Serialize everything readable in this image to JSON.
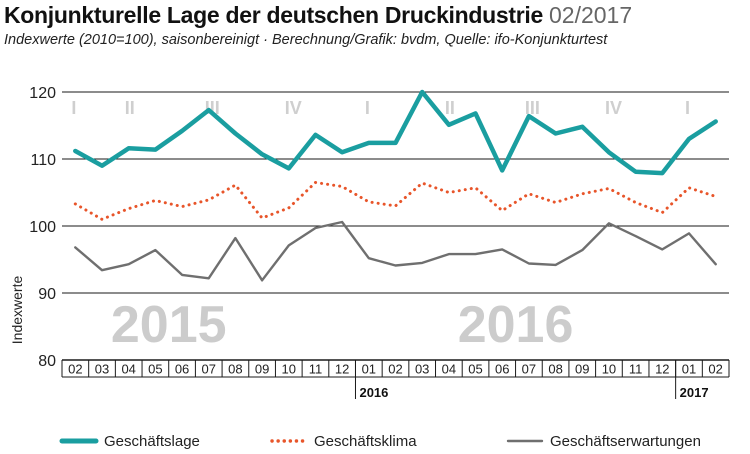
{
  "header": {
    "title": "Konjunkturelle Lage der deutschen Druckindustrie",
    "date": "02/2017",
    "subtitle": "Indexwerte (2010=100), saisonbereinigt · Berechnung/Grafik: bvdm, Quelle: ifo-Konjunkturtest"
  },
  "chart_data": {
    "type": "line",
    "title": "Konjunkturelle Lage der deutschen Druckindustrie",
    "ylabel": "Indexwerte",
    "xlabel": "",
    "ylim": [
      80,
      120
    ],
    "yticks": [
      80,
      90,
      100,
      110,
      120
    ],
    "grid": true,
    "legend_position": "bottom",
    "categories": [
      "02",
      "03",
      "04",
      "05",
      "06",
      "07",
      "08",
      "09",
      "10",
      "11",
      "12",
      "01",
      "02",
      "03",
      "04",
      "05",
      "06",
      "07",
      "08",
      "09",
      "10",
      "11",
      "12",
      "01",
      "02"
    ],
    "year_markers": [
      {
        "label": "2016",
        "index": 11
      },
      {
        "label": "2017",
        "index": 23
      }
    ],
    "quarters": [
      {
        "label": "I",
        "index": 0
      },
      {
        "label": "II",
        "index": 2
      },
      {
        "label": "III",
        "index": 5
      },
      {
        "label": "IV",
        "index": 8
      },
      {
        "label": "I",
        "index": 11
      },
      {
        "label": "II",
        "index": 14
      },
      {
        "label": "III",
        "index": 17
      },
      {
        "label": "IV",
        "index": 20
      },
      {
        "label": "I",
        "index": 23
      }
    ],
    "watermarks": [
      {
        "label": "2015",
        "index": 3.5
      },
      {
        "label": "2016",
        "index": 16.5
      }
    ],
    "series": [
      {
        "name": "Geschäftslage",
        "color": "#1a9ea0",
        "style": "solid-thick",
        "values": [
          111.2,
          109.0,
          111.6,
          111.4,
          114.2,
          117.3,
          113.8,
          110.7,
          108.6,
          113.6,
          111.0,
          112.4,
          112.4,
          120.0,
          115.1,
          116.8,
          108.3,
          116.4,
          113.8,
          114.8,
          111.0,
          108.1,
          107.9,
          113.0,
          115.6
        ]
      },
      {
        "name": "Geschäftsklima",
        "color": "#e8552a",
        "style": "dotted",
        "values": [
          103.3,
          101.0,
          102.6,
          103.8,
          102.9,
          103.9,
          106.1,
          101.2,
          102.7,
          106.5,
          105.9,
          103.6,
          103.0,
          106.4,
          105.0,
          105.7,
          102.3,
          104.8,
          103.5,
          104.8,
          105.6,
          103.5,
          102.0,
          105.7,
          104.4
        ]
      },
      {
        "name": "Geschäftserwartungen",
        "color": "#6f6f6f",
        "style": "solid",
        "values": [
          96.8,
          93.4,
          94.3,
          96.4,
          92.7,
          92.2,
          98.2,
          91.9,
          97.1,
          99.7,
          100.6,
          95.2,
          94.1,
          94.5,
          95.8,
          95.8,
          96.5,
          94.4,
          94.2,
          96.4,
          100.4,
          98.5,
          96.5,
          98.9,
          94.3
        ]
      }
    ]
  }
}
